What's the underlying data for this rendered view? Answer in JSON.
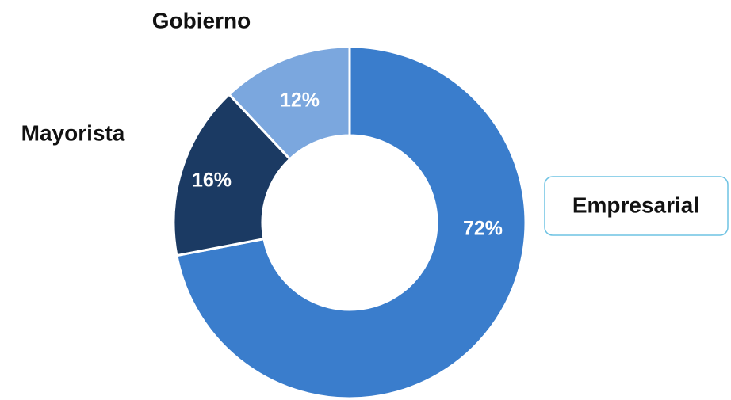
{
  "chart_data": {
    "type": "donut",
    "categories": [
      "Empresarial",
      "Mayorista",
      "Gobierno"
    ],
    "values": [
      72,
      16,
      12
    ],
    "value_labels": [
      "72%",
      "16%",
      "12%"
    ],
    "colors": [
      "#3a7dcc",
      "#1b3a63",
      "#7ba7de"
    ]
  }
}
